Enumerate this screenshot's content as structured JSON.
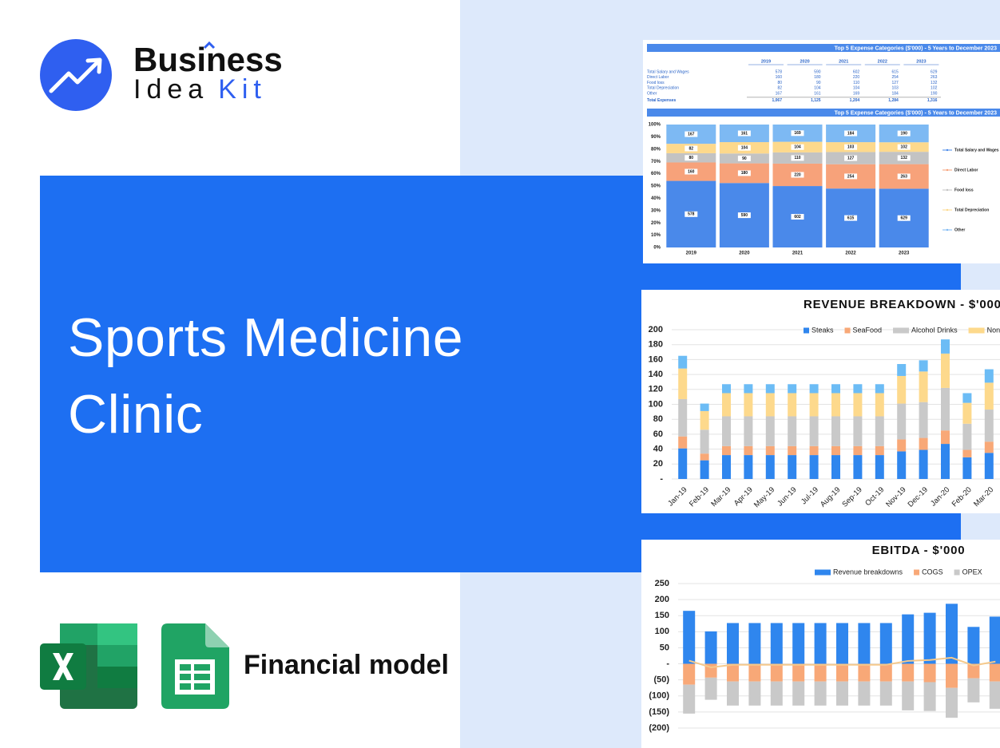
{
  "brand": {
    "name_line1": "Business",
    "name_line2a": "Idea",
    "name_line2b": "Kit"
  },
  "title": "Sports Medicine Clinic",
  "footer_label": "Financial model",
  "expense_table": {
    "title": "Top 5 Expense Categories ($'000) - 5 Years to December 2023",
    "columns": [
      "2019",
      "2020",
      "2021",
      "2022",
      "2023"
    ],
    "rows": [
      {
        "label": "Total Salary and Wages",
        "values": [
          578,
          590,
          602,
          615,
          629
        ]
      },
      {
        "label": "Direct Labor",
        "values": [
          160,
          180,
          220,
          254,
          263
        ]
      },
      {
        "label": "Food loss",
        "values": [
          80,
          90,
          110,
          127,
          132
        ]
      },
      {
        "label": "Total Depreciation",
        "values": [
          82,
          104,
          104,
          103,
          102
        ]
      },
      {
        "label": "Other",
        "values": [
          167,
          161,
          169,
          184,
          190
        ]
      },
      {
        "label": "Total Expenses",
        "values": [
          "1,067",
          "1,125",
          "1,204",
          "1,284",
          "1,316"
        ]
      }
    ]
  },
  "chart_data": [
    {
      "type": "bar",
      "stacked": "percent",
      "title": "Top 5 Expense Categories ($'000) - 5 Years to December 2023",
      "categories": [
        "2019",
        "2020",
        "2021",
        "2022",
        "2023"
      ],
      "series": [
        {
          "name": "Total Salary and Wages",
          "color": "#4a89ea",
          "values": [
            578,
            590,
            602,
            615,
            629
          ]
        },
        {
          "name": "Direct Labor",
          "color": "#f7a27a",
          "values": [
            160,
            180,
            220,
            254,
            263
          ]
        },
        {
          "name": "Food loss",
          "color": "#c3c3c3",
          "values": [
            80,
            90,
            110,
            127,
            132
          ]
        },
        {
          "name": "Total Depreciation",
          "color": "#fdd98c",
          "values": [
            82,
            104,
            104,
            103,
            102
          ]
        },
        {
          "name": "Other",
          "color": "#7db9f3",
          "values": [
            167,
            161,
            169,
            184,
            190
          ]
        }
      ],
      "ylim": [
        0,
        100
      ],
      "yticks": [
        {
          "value": 0,
          "label": "0%"
        },
        {
          "value": 10,
          "label": "10%"
        },
        {
          "value": 20,
          "label": "20%"
        },
        {
          "value": 30,
          "label": "30%"
        },
        {
          "value": 40,
          "label": "40%"
        },
        {
          "value": 50,
          "label": "50%"
        },
        {
          "value": 60,
          "label": "60%"
        },
        {
          "value": 70,
          "label": "70%"
        },
        {
          "value": 80,
          "label": "80%"
        },
        {
          "value": 90,
          "label": "90%"
        },
        {
          "value": 100,
          "label": "100%"
        }
      ],
      "grid": false,
      "legend": "right"
    },
    {
      "type": "bar",
      "stacked": true,
      "title": "REVENUE BREAKDOWN - $'000",
      "categories": [
        "Jan-19",
        "Feb-19",
        "Mar-19",
        "Apr-19",
        "May-19",
        "Jun-19",
        "Jul-19",
        "Aug-19",
        "Sep-19",
        "Oct-19",
        "Nov-19",
        "Dec-19",
        "Jan-20",
        "Feb-20",
        "Mar-20"
      ],
      "series": [
        {
          "name": "Steaks",
          "color": "#2f86ee",
          "values": [
            41,
            25,
            32,
            32,
            32,
            32,
            32,
            32,
            32,
            32,
            37,
            39,
            47,
            29,
            35
          ]
        },
        {
          "name": "SeaFood",
          "color": "#f8a877",
          "values": [
            16,
            9,
            12,
            12,
            12,
            12,
            12,
            12,
            12,
            12,
            16,
            16,
            18,
            10,
            15
          ]
        },
        {
          "name": "Alcohol Drinks",
          "color": "#c9c9c9",
          "values": [
            50,
            32,
            40,
            40,
            40,
            40,
            40,
            40,
            40,
            40,
            48,
            48,
            57,
            35,
            43
          ]
        },
        {
          "name": "Non Alcohol Drinks",
          "color": "#fdd98c",
          "values": [
            41,
            25,
            31,
            31,
            31,
            31,
            31,
            31,
            31,
            31,
            37,
            41,
            46,
            28,
            36
          ]
        },
        {
          "color": "#6cbcf5",
          "values": [
            17,
            10,
            12,
            12,
            12,
            12,
            12,
            12,
            12,
            12,
            16,
            15,
            19,
            13,
            18
          ]
        }
      ],
      "ylim": [
        0,
        200
      ],
      "yticks": [
        {
          "value": 0,
          "label": "-"
        },
        20,
        40,
        60,
        80,
        100,
        120,
        140,
        160,
        180,
        200
      ],
      "grid": true,
      "legend": "top"
    },
    {
      "type": "bar",
      "stacked": true,
      "title": "EBITDA - $'000",
      "categories": [
        null,
        null,
        null,
        null,
        null,
        null,
        null,
        null,
        null,
        null,
        null,
        null,
        null,
        null,
        null
      ],
      "series": [
        {
          "name": "Revenue breakdowns",
          "color": "#2f86ee",
          "values": [
            165,
            101,
            127,
            127,
            127,
            127,
            127,
            127,
            127,
            127,
            154,
            159,
            187,
            115,
            147
          ]
        },
        {
          "name": "COGS",
          "color": "#f8a877",
          "values": [
            -65,
            -43,
            -55,
            -55,
            -55,
            -55,
            -55,
            -55,
            -55,
            -55,
            -55,
            -57,
            -75,
            -45,
            -55
          ]
        },
        {
          "name": "OPEX",
          "color": "#c9c9c9",
          "values": [
            -90,
            -69,
            -75,
            -75,
            -75,
            -75,
            -75,
            -75,
            -75,
            -75,
            -90,
            -90,
            -93,
            -75,
            -85
          ]
        },
        {
          "type": "line",
          "color": "#f5c98c",
          "values": [
            10,
            -11,
            -3,
            -3,
            -3,
            -3,
            -3,
            -3,
            -3,
            -3,
            9,
            12,
            19,
            -5,
            7
          ]
        }
      ],
      "ylim": [
        -200,
        250
      ],
      "yticks": [
        {
          "value": -200,
          "label": "(200)"
        },
        {
          "value": -150,
          "label": "(150)"
        },
        {
          "value": -100,
          "label": "(100)"
        },
        {
          "value": -50,
          "label": "(50)"
        },
        {
          "value": 0,
          "label": "-"
        },
        50,
        100,
        150,
        200,
        250
      ],
      "grid": true,
      "legend": "top"
    }
  ]
}
